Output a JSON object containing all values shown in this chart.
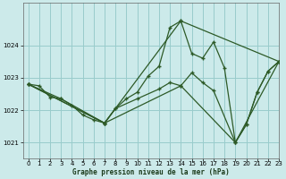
{
  "title": "Graphe pression niveau de la mer (hPa)",
  "bg_color": "#cceaea",
  "grid_color": "#99cccc",
  "line_color": "#2d5a27",
  "xlim": [
    -0.5,
    23
  ],
  "ylim": [
    1020.5,
    1025.3
  ],
  "yticks": [
    1021,
    1022,
    1023,
    1024
  ],
  "xticks": [
    0,
    1,
    2,
    3,
    4,
    5,
    6,
    7,
    8,
    9,
    10,
    11,
    12,
    13,
    14,
    15,
    16,
    17,
    18,
    19,
    20,
    21,
    22,
    23
  ],
  "main_x": [
    0,
    1,
    2,
    3,
    4,
    5,
    6,
    7,
    8,
    9,
    10,
    11,
    12,
    13,
    14,
    15,
    16,
    17,
    18,
    19,
    20,
    21,
    22,
    23
  ],
  "main_y": [
    1022.8,
    1022.75,
    1022.4,
    1022.35,
    1022.15,
    1021.85,
    1021.7,
    1021.6,
    1022.05,
    1022.35,
    1022.55,
    1023.05,
    1023.35,
    1024.55,
    1024.75,
    1023.75,
    1023.6,
    1024.1,
    1023.3,
    1021.0,
    1021.55,
    1022.55,
    1023.2,
    1023.5
  ],
  "line2_x": [
    0,
    3,
    7,
    8,
    10,
    12,
    13,
    14,
    15,
    16,
    17,
    19,
    20,
    21,
    22,
    23
  ],
  "line2_y": [
    1022.8,
    1022.35,
    1021.6,
    1022.05,
    1022.35,
    1022.65,
    1022.85,
    1022.75,
    1023.15,
    1022.85,
    1022.6,
    1021.0,
    1021.55,
    1022.55,
    1023.2,
    1023.5
  ],
  "line3_x": [
    0,
    7,
    14,
    19,
    23
  ],
  "line3_y": [
    1022.8,
    1021.6,
    1022.75,
    1021.0,
    1023.5
  ],
  "line4_x": [
    0,
    7,
    14,
    23
  ],
  "line4_y": [
    1022.8,
    1021.6,
    1024.75,
    1023.5
  ]
}
